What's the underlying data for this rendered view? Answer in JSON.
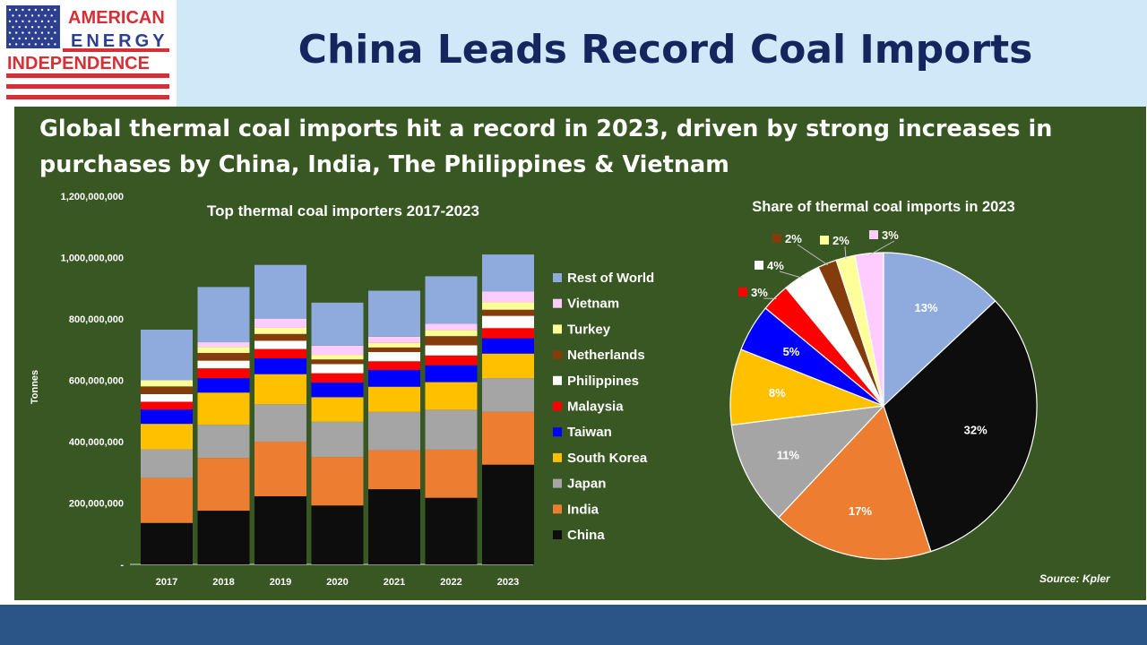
{
  "header": {
    "title": "China Leads Record Coal Imports",
    "logo": {
      "lines": [
        "AMERICAN",
        "ENERGY",
        "INDEPENDENCE"
      ],
      "colors": {
        "red": "#d62f35",
        "blue": "#2d3f8f"
      }
    }
  },
  "headline": "Global thermal coal imports hit a record in 2023, driven by strong increases in purchases by China, India, The Philippines & Vietnam",
  "source": "Source: Kpler",
  "colors": {
    "header_bg": "#cfe9f9",
    "title": "#14265e",
    "panel_bg": "#385723",
    "footer_bar": "#2b5586"
  },
  "chart_data": [
    {
      "type": "bar",
      "stacked": true,
      "title": "Top thermal coal importers 2017-2023",
      "ylabel": "Tonnes",
      "xlabel": "",
      "ylim": [
        0,
        1200000000
      ],
      "yticks": [
        0,
        200000000,
        400000000,
        600000000,
        800000000,
        1000000000,
        1200000000
      ],
      "ytick_labels": [
        "-",
        "200,000,000",
        "400,000,000",
        "600,000,000",
        "800,000,000",
        "1,000,000,000",
        "1,200,000,000"
      ],
      "categories": [
        "2017",
        "2018",
        "2019",
        "2020",
        "2021",
        "2022",
        "2023"
      ],
      "legend_position": "right",
      "series": [
        {
          "name": "China",
          "color": "#0d0d0d",
          "values": [
            135000000,
            175000000,
            222000000,
            192000000,
            245000000,
            217000000,
            325000000
          ]
        },
        {
          "name": "India",
          "color": "#ed7d31",
          "values": [
            147000000,
            172000000,
            178000000,
            158000000,
            127000000,
            157000000,
            172000000
          ]
        },
        {
          "name": "Japan",
          "color": "#a5a5a5",
          "values": [
            93000000,
            108000000,
            122000000,
            115000000,
            125000000,
            130000000,
            110000000
          ]
        },
        {
          "name": "South Korea",
          "color": "#ffc000",
          "values": [
            83000000,
            105000000,
            98000000,
            80000000,
            82000000,
            90000000,
            80000000
          ]
        },
        {
          "name": "Taiwan",
          "color": "#0000ff",
          "values": [
            47000000,
            47000000,
            52000000,
            48000000,
            55000000,
            55000000,
            50000000
          ]
        },
        {
          "name": "Malaysia",
          "color": "#ff0000",
          "values": [
            25000000,
            32000000,
            30000000,
            30000000,
            28000000,
            32000000,
            33000000
          ]
        },
        {
          "name": "Philippines",
          "color": "#ffffff",
          "values": [
            25000000,
            25000000,
            27000000,
            30000000,
            30000000,
            33000000,
            40000000
          ]
        },
        {
          "name": "Netherlands",
          "color": "#843c0c",
          "values": [
            25000000,
            25000000,
            22000000,
            15000000,
            15000000,
            30000000,
            20000000
          ]
        },
        {
          "name": "Turkey",
          "color": "#ffff99",
          "values": [
            20000000,
            20000000,
            20000000,
            15000000,
            15000000,
            20000000,
            25000000
          ]
        },
        {
          "name": "Vietnam",
          "color": "#ffccff",
          "values": [
            0,
            15000000,
            30000000,
            30000000,
            20000000,
            20000000,
            35000000
          ]
        },
        {
          "name": "Rest of World",
          "color": "#8faadc",
          "values": [
            165000000,
            180000000,
            175000000,
            140000000,
            150000000,
            155000000,
            120000000
          ]
        }
      ]
    },
    {
      "type": "pie",
      "title": "Share of thermal coal imports in 2023",
      "slices": [
        {
          "name": "Rest of World",
          "value": 13,
          "label": "13%",
          "color": "#8faadc"
        },
        {
          "name": "China",
          "value": 32,
          "label": "32%",
          "color": "#0d0d0d"
        },
        {
          "name": "India",
          "value": 17,
          "label": "17%",
          "color": "#ed7d31"
        },
        {
          "name": "Japan",
          "value": 11,
          "label": "11%",
          "color": "#a5a5a5"
        },
        {
          "name": "South Korea",
          "value": 8,
          "label": "8%",
          "color": "#ffc000"
        },
        {
          "name": "Taiwan",
          "value": 5,
          "label": "5%",
          "color": "#0000ff"
        },
        {
          "name": "Malaysia",
          "value": 3,
          "label": "3%",
          "color": "#ff0000"
        },
        {
          "name": "Philippines",
          "value": 4,
          "label": "4%",
          "color": "#ffffff"
        },
        {
          "name": "Netherlands",
          "value": 2,
          "label": "2%",
          "color": "#843c0c"
        },
        {
          "name": "Turkey",
          "value": 2,
          "label": "2%",
          "color": "#ffff99"
        },
        {
          "name": "Vietnam",
          "value": 3,
          "label": "3%",
          "color": "#ffccff"
        }
      ]
    }
  ]
}
